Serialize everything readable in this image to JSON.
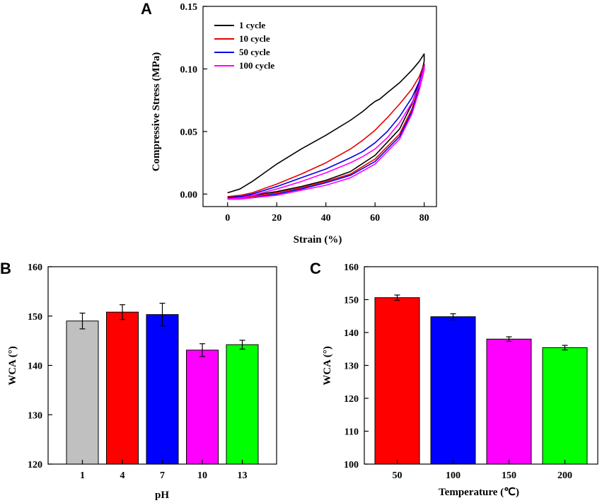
{
  "chart_data": [
    {
      "panel": "A",
      "type": "line",
      "xlabel": "Strain (%)",
      "ylabel": "Compressive Stress (MPa)",
      "xlim": [
        -10,
        85
      ],
      "ylim": [
        -0.01,
        0.15
      ],
      "xticks": [
        0,
        20,
        40,
        60,
        80
      ],
      "yticks": [
        0.0,
        0.05,
        0.1,
        0.15
      ],
      "xtick_labels": [
        "0",
        "20",
        "40",
        "60",
        "80"
      ],
      "ytick_labels": [
        "0.00",
        "0.05",
        "0.10",
        "0.15"
      ],
      "legend_position": "top-left",
      "series": [
        {
          "name": "1 cycle",
          "color": "#000000",
          "loading": {
            "x": [
              0,
              5,
              10,
              20,
              30,
              40,
              50,
              55,
              58,
              60,
              62,
              65,
              70,
              75,
              78,
              80
            ],
            "y": [
              0.001,
              0.004,
              0.01,
              0.024,
              0.036,
              0.047,
              0.059,
              0.066,
              0.071,
              0.074,
              0.076,
              0.081,
              0.089,
              0.099,
              0.106,
              0.112
            ]
          },
          "unloading": {
            "x": [
              80,
              78,
              75,
              70,
              60,
              50,
              40,
              30,
              20,
              10,
              5,
              0
            ],
            "y": [
              0.106,
              0.09,
              0.072,
              0.052,
              0.031,
              0.018,
              0.011,
              0.006,
              0.002,
              -0.001,
              -0.002,
              -0.002
            ]
          }
        },
        {
          "name": "10 cycle",
          "color": "#e60000",
          "loading": {
            "x": [
              0,
              5,
              10,
              20,
              30,
              40,
              50,
              55,
              60,
              65,
              70,
              75,
              78,
              80
            ],
            "y": [
              -0.002,
              -0.001,
              0.001,
              0.008,
              0.016,
              0.025,
              0.036,
              0.043,
              0.051,
              0.061,
              0.072,
              0.084,
              0.094,
              0.104
            ]
          },
          "unloading": {
            "x": [
              80,
              78,
              75,
              70,
              60,
              50,
              40,
              30,
              20,
              10,
              5,
              0
            ],
            "y": [
              0.1,
              0.087,
              0.068,
              0.048,
              0.028,
              0.016,
              0.01,
              0.005,
              0.001,
              -0.002,
              -0.003,
              -0.003
            ]
          }
        },
        {
          "name": "50 cycle",
          "color": "#0000e6",
          "loading": {
            "x": [
              0,
              5,
              10,
              20,
              30,
              40,
              50,
              55,
              60,
              65,
              70,
              75,
              78,
              80
            ],
            "y": [
              -0.003,
              -0.002,
              0.0,
              0.006,
              0.013,
              0.02,
              0.029,
              0.034,
              0.041,
              0.05,
              0.062,
              0.077,
              0.09,
              0.103
            ]
          },
          "unloading": {
            "x": [
              80,
              78,
              75,
              70,
              60,
              50,
              40,
              30,
              20,
              10,
              5,
              0
            ],
            "y": [
              0.1,
              0.085,
              0.066,
              0.046,
              0.026,
              0.015,
              0.009,
              0.004,
              0.0,
              -0.003,
              -0.004,
              -0.004
            ]
          }
        },
        {
          "name": "100 cycle",
          "color": "#ff00ff",
          "loading": {
            "x": [
              0,
              5,
              10,
              20,
              30,
              40,
              50,
              55,
              60,
              65,
              70,
              75,
              78,
              80
            ],
            "y": [
              -0.004,
              -0.003,
              -0.001,
              0.004,
              0.01,
              0.017,
              0.025,
              0.03,
              0.036,
              0.045,
              0.057,
              0.073,
              0.087,
              0.102
            ]
          },
          "unloading": {
            "x": [
              80,
              78,
              75,
              70,
              60,
              50,
              40,
              30,
              20,
              10,
              5,
              0
            ],
            "y": [
              0.099,
              0.083,
              0.064,
              0.044,
              0.024,
              0.013,
              0.007,
              0.003,
              -0.001,
              -0.003,
              -0.004,
              -0.004
            ]
          }
        }
      ]
    },
    {
      "panel": "B",
      "type": "bar",
      "xlabel": "pH",
      "ylabel": "WCA (°)",
      "ylim": [
        120,
        160
      ],
      "yticks": [
        120,
        130,
        140,
        150,
        160
      ],
      "ytick_labels": [
        "120",
        "130",
        "140",
        "150",
        "160"
      ],
      "categories": [
        "1",
        "4",
        "7",
        "10",
        "13"
      ],
      "values": [
        149.0,
        150.8,
        150.3,
        143.1,
        144.2
      ],
      "errors": [
        1.6,
        1.5,
        2.3,
        1.3,
        0.9
      ],
      "colors": [
        "#c0c0c0",
        "#ff0000",
        "#0000ff",
        "#ff00ff",
        "#00ff00"
      ]
    },
    {
      "panel": "C",
      "type": "bar",
      "xlabel": "Temperature (℃)",
      "ylabel": "WCA (°)",
      "ylim": [
        100,
        160
      ],
      "yticks": [
        100,
        110,
        120,
        130,
        140,
        150,
        160
      ],
      "ytick_labels": [
        "100",
        "110",
        "120",
        "130",
        "140",
        "150",
        "160"
      ],
      "categories": [
        "50",
        "100",
        "150",
        "200"
      ],
      "values": [
        150.6,
        144.8,
        138.0,
        135.4
      ],
      "errors": [
        0.8,
        0.9,
        0.7,
        0.7
      ],
      "colors": [
        "#ff0000",
        "#0000ff",
        "#ff00ff",
        "#00ff00"
      ]
    }
  ]
}
